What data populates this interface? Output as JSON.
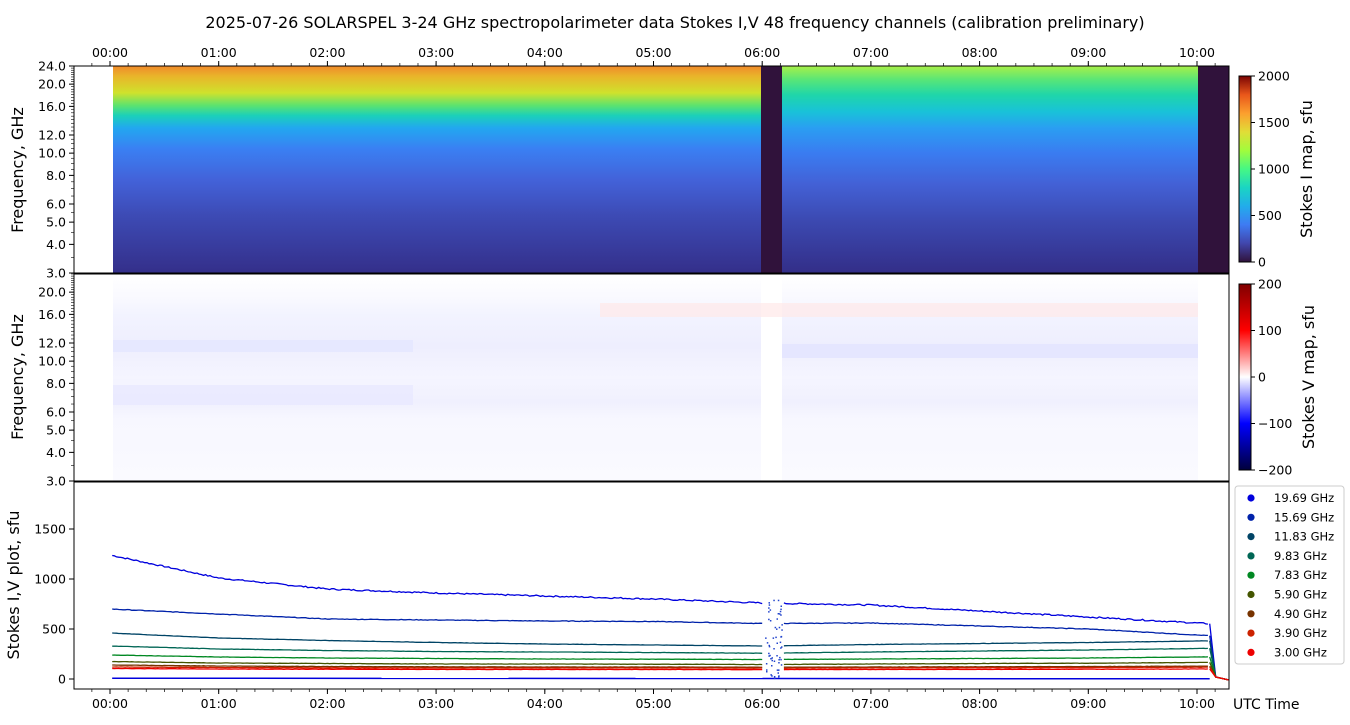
{
  "title": "2025-07-26  SOLARSPEL  3-24 GHz spectropolarimeter data   Stokes I,V   48 frequency channels   (calibration preliminary)",
  "time_ticks": [
    "00:00",
    "01:00",
    "02:00",
    "03:00",
    "04:00",
    "05:00",
    "06:00",
    "07:00",
    "08:00",
    "09:00",
    "10:00"
  ],
  "freq_ticks": [
    "3.0",
    "4.0",
    "5.0",
    "6.0",
    "8.0",
    "10.0",
    "12.0",
    "16.0",
    "20.0",
    "24.0"
  ],
  "freq_ticks_v": [
    "3.0",
    "4.0",
    "5.0",
    "6.0",
    "8.0",
    "10.0",
    "12.0",
    "16.0",
    "20.0"
  ],
  "xlabel": "UTC Time",
  "panel_i": {
    "ylabel": "Frequency, GHz",
    "cbar_label": "Stokes I map, sfu",
    "cbar_ticks": [
      "0",
      "500",
      "1000",
      "1500",
      "2000"
    ],
    "cbar_range": [
      0,
      2000
    ]
  },
  "panel_v": {
    "ylabel": "Frequency, GHz",
    "cbar_label": "Stokes V map, sfu",
    "cbar_ticks": [
      "−200",
      "−100",
      "0",
      "100",
      "200"
    ],
    "cbar_range": [
      -200,
      200
    ]
  },
  "panel_plot": {
    "ylabel": "Stokes I,V plot, sfu",
    "yticks": [
      "0",
      "500",
      "1000",
      "1500"
    ]
  },
  "chart_data": {
    "type": "line",
    "x_unit": "hours UTC",
    "xlim": [
      "23:38",
      "10:20"
    ],
    "ylim": [
      -100,
      2000
    ],
    "data_gap": [
      "06:00",
      "06:12"
    ],
    "data_end": "10:07",
    "x": [
      "00:00",
      "01:00",
      "02:00",
      "03:00",
      "04:00",
      "05:00",
      "06:00",
      "07:00",
      "08:00",
      "09:00",
      "10:00"
    ],
    "series": [
      {
        "name": "19.69 GHz",
        "color": "#0000dd",
        "values": [
          1240,
          1010,
          900,
          860,
          830,
          800,
          760,
          740,
          680,
          620,
          560
        ]
      },
      {
        "name": "15.69 GHz",
        "color": "#0022aa",
        "values": [
          700,
          650,
          600,
          590,
          580,
          575,
          555,
          560,
          530,
          500,
          440
        ]
      },
      {
        "name": "11.83 GHz",
        "color": "#004466",
        "values": [
          460,
          410,
          385,
          365,
          350,
          340,
          330,
          345,
          355,
          365,
          380
        ]
      },
      {
        "name": "9.83 GHz",
        "color": "#006655",
        "values": [
          330,
          300,
          285,
          275,
          270,
          265,
          258,
          270,
          280,
          290,
          305
        ]
      },
      {
        "name": "7.83 GHz",
        "color": "#008822",
        "values": [
          240,
          220,
          210,
          205,
          200,
          198,
          195,
          200,
          205,
          210,
          220
        ]
      },
      {
        "name": "5.90 GHz",
        "color": "#445500",
        "values": [
          175,
          160,
          155,
          150,
          150,
          148,
          145,
          150,
          155,
          158,
          165
        ]
      },
      {
        "name": "4.90 GHz",
        "color": "#773300",
        "values": [
          140,
          130,
          125,
          122,
          120,
          120,
          118,
          120,
          122,
          125,
          128
        ]
      },
      {
        "name": "3.90 GHz",
        "color": "#cc2200",
        "values": [
          120,
          115,
          112,
          110,
          110,
          110,
          108,
          110,
          112,
          115,
          118
        ]
      },
      {
        "name": "3.00 GHz",
        "color": "#ee0000",
        "values": [
          105,
          100,
          98,
          96,
          95,
          95,
          94,
          95,
          96,
          98,
          100
        ]
      }
    ],
    "legend_position": "right"
  }
}
